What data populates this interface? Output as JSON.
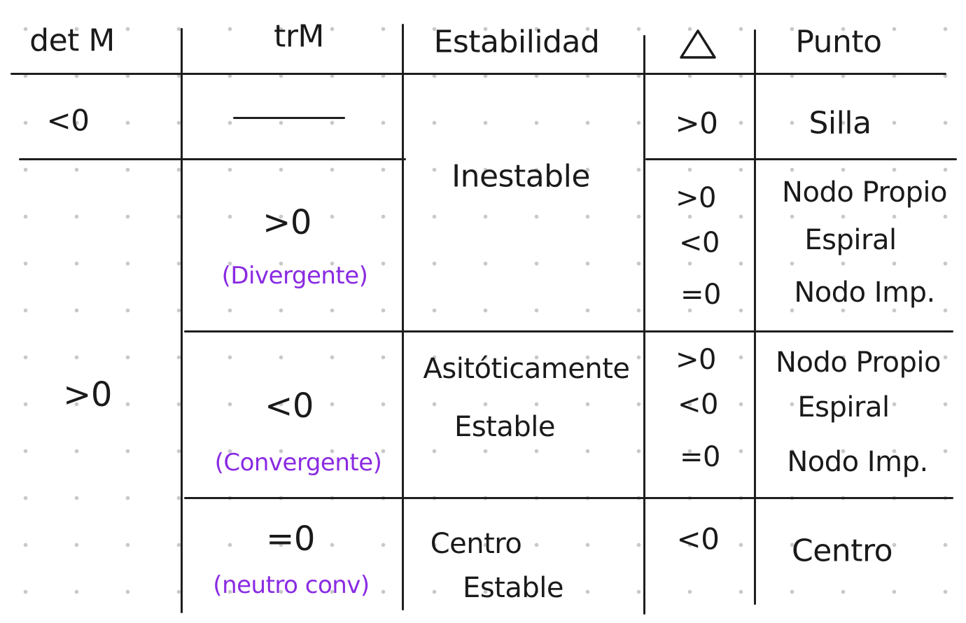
{
  "headers": {
    "det": "det M",
    "tr": "trM",
    "stability": "Estabilidad",
    "delta_icon": "triangle-delta-icon",
    "point": "Punto"
  },
  "rows": {
    "det_negative": {
      "det": "<0",
      "tr": "",
      "delta": ">0",
      "point": "Silla"
    },
    "det_positive": {
      "det": ">0",
      "tr_positive": {
        "tr": ">0",
        "note": "(Divergente)",
        "delta": [
          ">0",
          "<0",
          "=0"
        ],
        "point": [
          "Nodo Propio",
          "Espiral",
          "Nodo Imp."
        ]
      },
      "tr_negative": {
        "tr": "<0",
        "note": "(Convergente)",
        "stability": [
          "Asitóticamente",
          "Estable"
        ],
        "delta": [
          ">0",
          "<0",
          "=0"
        ],
        "point": [
          "Nodo Propio",
          "Espiral",
          "Nodo Imp."
        ]
      },
      "tr_zero": {
        "tr": "=0",
        "note": "(neutro conv)",
        "stability": [
          "Centro",
          "Estable"
        ],
        "delta": "<0",
        "point": "Centro"
      }
    },
    "unstable_label": "Inestable"
  },
  "colors": {
    "ink": "#1a1a1a",
    "note_ink": "#8a2be2",
    "dot_grid": "#c9c9c9"
  }
}
